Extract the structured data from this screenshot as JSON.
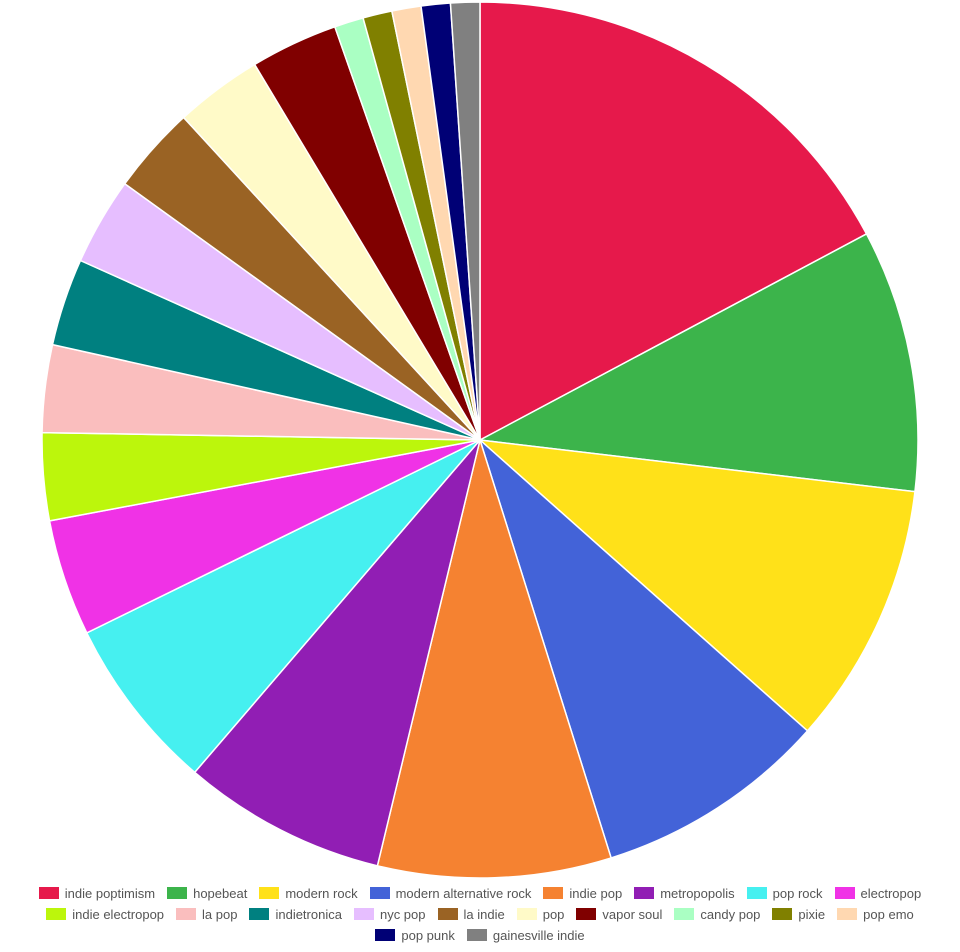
{
  "chart_data": {
    "type": "pie",
    "categories": [
      "indie poptimism",
      "hopebeat",
      "modern rock",
      "modern alternative rock",
      "indie pop",
      "metropopolis",
      "pop rock",
      "electropop",
      "indie electropop",
      "la pop",
      "indietronica",
      "nyc pop",
      "la indie",
      "pop",
      "vapor soul",
      "candy pop",
      "pixie",
      "pop emo",
      "pop punk",
      "gainesville indie"
    ],
    "values": [
      16,
      9,
      9,
      8,
      8,
      7,
      6,
      4,
      3,
      3,
      3,
      3,
      3,
      3,
      3,
      1,
      1,
      1,
      1,
      1
    ],
    "colors": [
      "#e6194b",
      "#3cb44b",
      "#ffe119",
      "#4363d8",
      "#f58231",
      "#911eb4",
      "#46f0f0",
      "#f032e6",
      "#bcf60c",
      "#fabebe",
      "#008080",
      "#e6beff",
      "#9a6324",
      "#fffac8",
      "#800000",
      "#aaffc3",
      "#808000",
      "#ffd8b1",
      "#000075",
      "#808080"
    ],
    "legend": "bottom"
  }
}
